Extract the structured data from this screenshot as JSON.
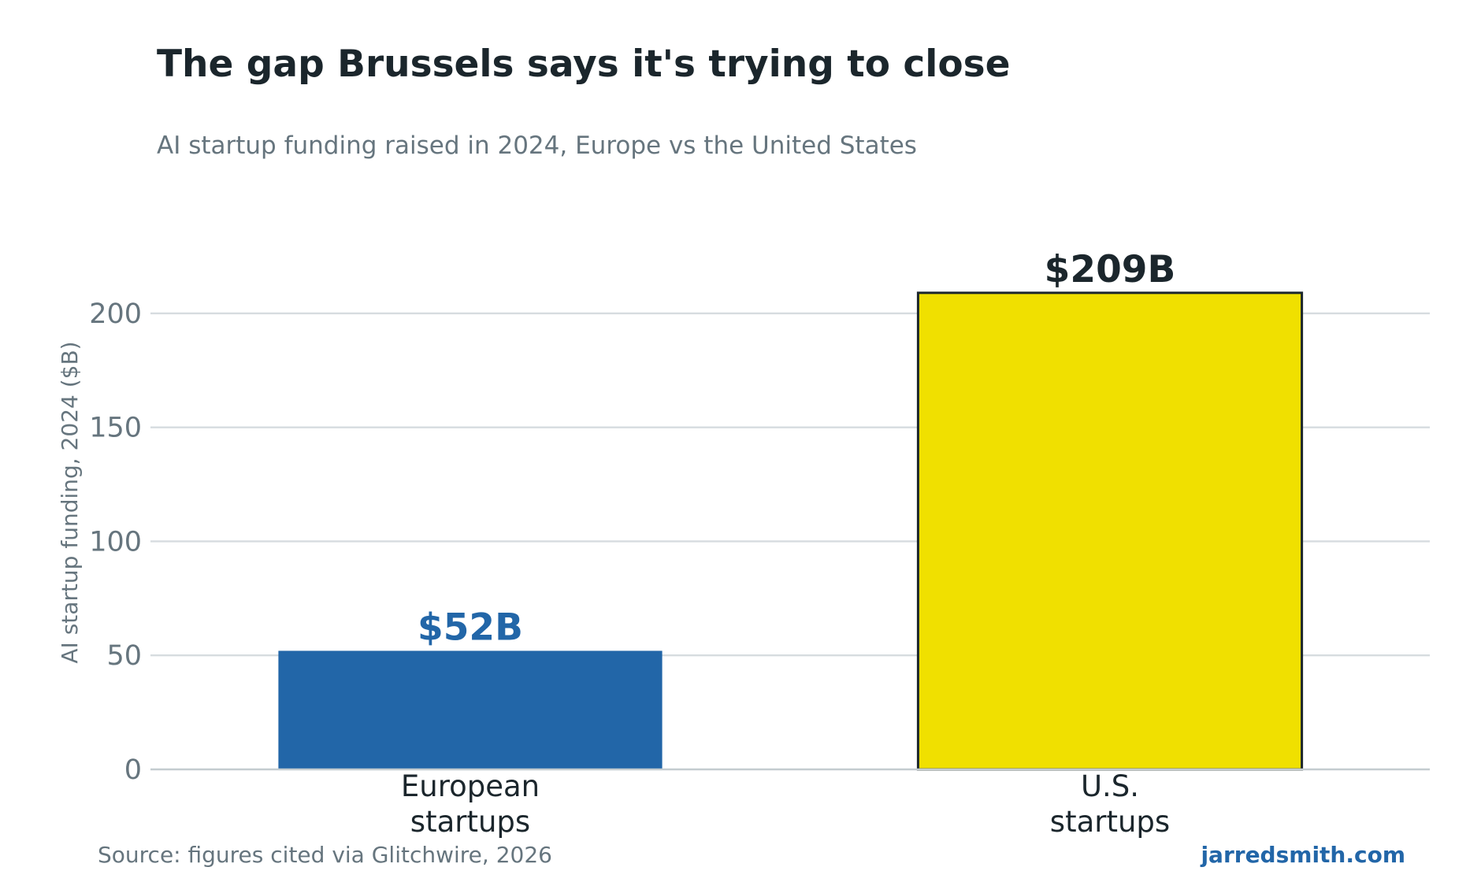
{
  "chart_data": {
    "type": "bar",
    "title": "The gap Brussels says it's trying to close",
    "subtitle": "AI startup funding raised in 2024, Europe vs the United States",
    "ylabel": "AI startup funding, 2024 ($B)",
    "xlabel": "",
    "categories": [
      [
        "European",
        "startups"
      ],
      [
        "U.S.",
        "startups"
      ]
    ],
    "values": [
      52,
      209
    ],
    "data_labels": [
      "$52B",
      "$209B"
    ],
    "bar_colors": [
      "#2266a8",
      "#f0e000"
    ],
    "bar_outline_colors": [
      "",
      "#1b262c"
    ],
    "label_colors": [
      "#2266a8",
      "#1b262c"
    ],
    "ylim": [
      0,
      220
    ],
    "yticks": [
      0,
      50,
      100,
      150,
      200
    ],
    "grid": true,
    "legend": "none"
  },
  "footer": {
    "source": "Source: figures cited via Glitchwire, 2026",
    "credit": "jarredsmith.com",
    "credit_color": "#2266a8"
  }
}
